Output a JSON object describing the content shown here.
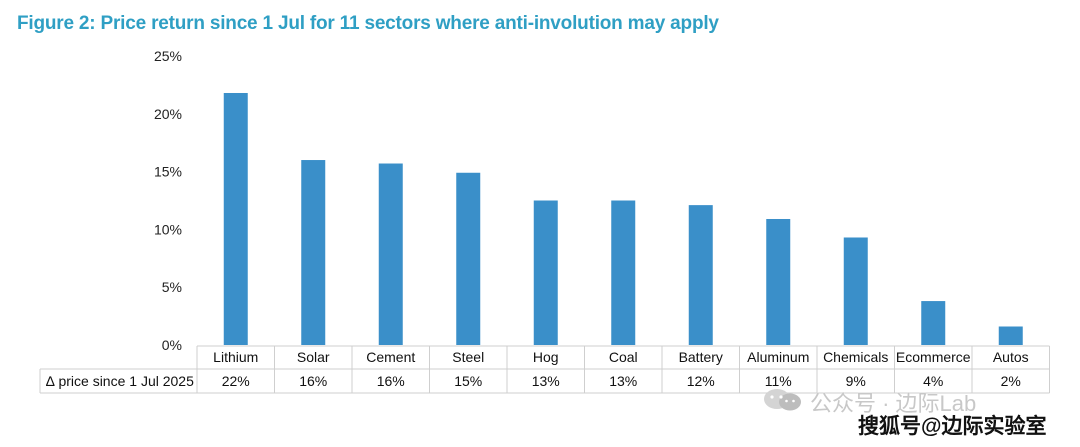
{
  "chart_data": {
    "type": "bar",
    "title": "Figure 2: Price return since 1 Jul for 11 sectors where anti-involution may apply",
    "categories": [
      "Lithium",
      "Solar",
      "Cement",
      "Steel",
      "Hog",
      "Coal",
      "Battery",
      "Aluminum",
      "Chemicals",
      "Ecommerce",
      "Autos"
    ],
    "values": [
      21.8,
      16.0,
      15.7,
      14.9,
      12.5,
      12.5,
      12.1,
      10.9,
      9.3,
      3.8,
      1.6
    ],
    "ylim": [
      0,
      25
    ],
    "yticks": [
      "0%",
      "5%",
      "10%",
      "15%",
      "20%",
      "25%"
    ],
    "ytick_values": [
      0,
      5,
      10,
      15,
      20,
      25
    ],
    "grid": false,
    "bar_color": "#3a8fc9",
    "table": {
      "row_label": "∆ price since 1 Jul 2025",
      "cells": [
        "22%",
        "16%",
        "16%",
        "15%",
        "13%",
        "13%",
        "12%",
        "11%",
        "9%",
        "4%",
        "2%"
      ]
    }
  },
  "watermark": {
    "text": "公众号 · 边际Lab",
    "icon": "wechat-icon"
  },
  "source_credit": "搜狐号@边际实验室"
}
